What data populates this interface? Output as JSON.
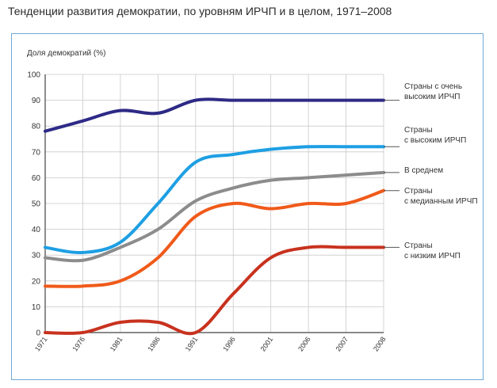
{
  "title": "Тенденции развития демократии, по уровням ИРЧП и в целом, 1971–2008",
  "chart_data": {
    "type": "line",
    "ylabel": "Доля демократий (%)",
    "xlabel": "",
    "x": [
      "1971",
      "1976",
      "1981",
      "1986",
      "1991",
      "1996",
      "2001",
      "2006",
      "2007",
      "2008"
    ],
    "ylim": [
      0,
      100
    ],
    "yticks": [
      "0",
      "10",
      "20",
      "30",
      "40",
      "50",
      "60",
      "70",
      "80",
      "90",
      "100"
    ],
    "grid": true,
    "series": [
      {
        "name": "Страны с очень высоким ИРЧП",
        "label_lines": [
          "Страны с очень",
          "высоким ИРЧП"
        ],
        "color": "#2e2a86",
        "values": [
          78,
          82,
          86,
          85,
          90,
          90,
          90,
          90,
          90,
          90
        ]
      },
      {
        "name": "Страны с высоким ИРЧП",
        "label_lines": [
          "Страны",
          "с высоким ИРЧП"
        ],
        "color": "#1e9fe3",
        "values": [
          33,
          31,
          35,
          50,
          66,
          69,
          71,
          72,
          72,
          72
        ]
      },
      {
        "name": "В среднем",
        "label_lines": [
          "В среднем"
        ],
        "color": "#8c8c8c",
        "values": [
          29,
          28,
          33,
          40,
          51,
          56,
          59,
          60,
          61,
          62
        ]
      },
      {
        "name": "Страны с медианным ИРЧП",
        "label_lines": [
          "Страны",
          "с медианным ИРЧП"
        ],
        "color": "#f05a1a",
        "values": [
          18,
          18,
          20,
          29,
          45,
          50,
          48,
          50,
          50,
          55
        ]
      },
      {
        "name": "Страны с низким ИРЧП",
        "label_lines": [
          "Страны",
          "с низким ИРЧП"
        ],
        "color": "#c8321e",
        "values": [
          0,
          0,
          4,
          4,
          0,
          15,
          29,
          33,
          33,
          33
        ]
      }
    ]
  }
}
